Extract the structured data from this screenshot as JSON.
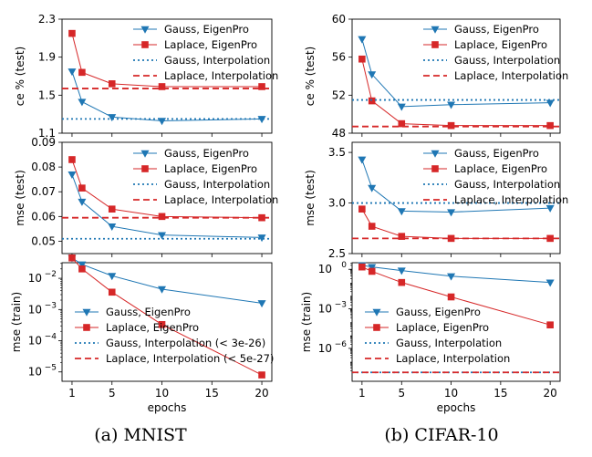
{
  "figure": {
    "captions": [
      "(a) MNIST",
      "(b) CIFAR-10"
    ],
    "xlabel": "epochs"
  },
  "chart_data": [
    {
      "type": "line",
      "dataset": "MNIST",
      "metric": "ce",
      "title": "",
      "xlabel": "",
      "ylabel": "ce % (test)",
      "xlim": [
        0,
        21
      ],
      "ylim": [
        1.1,
        2.3
      ],
      "yscale": "linear",
      "xticks": [
        1,
        5,
        10,
        15,
        20
      ],
      "xtick_labels": [],
      "yticks": [
        1.1,
        1.5,
        1.9,
        2.3
      ],
      "ytick_labels": [
        "1.1",
        "1.5",
        "1.9",
        "2.3"
      ],
      "grid": false,
      "legend": "top-right",
      "series": [
        {
          "name": "Gauss, EigenPro",
          "color": "#1f77b4",
          "style": "solid",
          "marker": "triangle-down",
          "x": [
            1,
            2,
            5,
            10,
            20
          ],
          "y": [
            1.75,
            1.43,
            1.27,
            1.23,
            1.25
          ]
        },
        {
          "name": "Laplace, EigenPro",
          "color": "#d62728",
          "style": "solid",
          "marker": "square",
          "x": [
            1,
            2,
            5,
            10,
            20
          ],
          "y": [
            2.15,
            1.74,
            1.62,
            1.59,
            1.59
          ]
        },
        {
          "name": "Gauss, Interpolation",
          "color": "#1f77b4",
          "style": "dotted",
          "hline": 1.25
        },
        {
          "name": "Laplace, Interpolation",
          "color": "#d62728",
          "style": "dashed",
          "hline": 1.57
        }
      ]
    },
    {
      "type": "line",
      "dataset": "MNIST",
      "metric": "mse",
      "title": "",
      "xlabel": "",
      "ylabel": "mse (test)",
      "xlim": [
        0,
        21
      ],
      "ylim": [
        0.045,
        0.09
      ],
      "yscale": "linear",
      "xticks": [
        1,
        5,
        10,
        15,
        20
      ],
      "xtick_labels": [],
      "yticks": [
        0.05,
        0.06,
        0.07,
        0.08,
        0.09
      ],
      "ytick_labels": [
        "0.05",
        "0.06",
        "0.07",
        "0.08",
        "0.09"
      ],
      "grid": false,
      "legend": "top-right",
      "series": [
        {
          "name": "Gauss, EigenPro",
          "color": "#1f77b4",
          "style": "solid",
          "marker": "triangle-down",
          "x": [
            1,
            2,
            5,
            10,
            20
          ],
          "y": [
            0.077,
            0.066,
            0.056,
            0.0525,
            0.0515
          ]
        },
        {
          "name": "Laplace, EigenPro",
          "color": "#d62728",
          "style": "solid",
          "marker": "square",
          "x": [
            1,
            2,
            5,
            10,
            20
          ],
          "y": [
            0.083,
            0.0715,
            0.063,
            0.06,
            0.0595
          ]
        },
        {
          "name": "Gauss, Interpolation",
          "color": "#1f77b4",
          "style": "dotted",
          "hline": 0.051
        },
        {
          "name": "Laplace, Interpolation",
          "color": "#d62728",
          "style": "dashed",
          "hline": 0.0595
        }
      ]
    },
    {
      "type": "line",
      "dataset": "MNIST",
      "metric": "mse-train",
      "title": "",
      "xlabel": "epochs",
      "ylabel": "mse (train)",
      "xlim": [
        0,
        21
      ],
      "ylim_log10": [
        -5.3,
        -1.5
      ],
      "yscale": "log",
      "xticks": [
        1,
        5,
        10,
        15,
        20
      ],
      "xtick_labels": [
        "1",
        "5",
        "10",
        "15",
        "20"
      ],
      "ytick_exponents": [
        -5,
        -4,
        -3,
        -2
      ],
      "ytick_base": "10",
      "grid": false,
      "legend": "bottom-left",
      "series": [
        {
          "name": "Gauss, EigenPro",
          "color": "#1f77b4",
          "style": "solid",
          "marker": "triangle-down",
          "x": [
            1,
            2,
            5,
            10,
            20
          ],
          "y": [
            0.045,
            0.028,
            0.012,
            0.0045,
            0.0016
          ]
        },
        {
          "name": "Laplace, EigenPro",
          "color": "#d62728",
          "style": "solid",
          "marker": "square",
          "x": [
            1,
            2,
            5,
            10,
            20
          ],
          "y": [
            0.045,
            0.02,
            0.0036,
            0.00033,
            8e-06
          ]
        },
        {
          "name": "Gauss, Interpolation (< 3e-26)",
          "color": "#1f77b4",
          "style": "dotted",
          "hline": null
        },
        {
          "name": "Laplace, Interpolation (< 5e-27)",
          "color": "#d62728",
          "style": "dashed",
          "hline": null
        }
      ]
    },
    {
      "type": "line",
      "dataset": "CIFAR-10",
      "metric": "ce",
      "title": "",
      "xlabel": "",
      "ylabel": "ce % (test)",
      "xlim": [
        0,
        21
      ],
      "ylim": [
        48,
        60
      ],
      "yscale": "linear",
      "xticks": [
        1,
        5,
        10,
        15,
        20
      ],
      "xtick_labels": [],
      "yticks": [
        48,
        52,
        56,
        60
      ],
      "ytick_labels": [
        "48",
        "52",
        "56",
        "60"
      ],
      "grid": false,
      "legend": "top-right",
      "series": [
        {
          "name": "Gauss, EigenPro",
          "color": "#1f77b4",
          "style": "solid",
          "marker": "triangle-down",
          "x": [
            1,
            2,
            5,
            10,
            20
          ],
          "y": [
            57.9,
            54.2,
            50.8,
            51.0,
            51.2
          ]
        },
        {
          "name": "Laplace, EigenPro",
          "color": "#d62728",
          "style": "solid",
          "marker": "square",
          "x": [
            1,
            2,
            5,
            10,
            20
          ],
          "y": [
            55.8,
            51.4,
            49.0,
            48.8,
            48.8
          ]
        },
        {
          "name": "Gauss, Interpolation",
          "color": "#1f77b4",
          "style": "dotted",
          "hline": 51.5
        },
        {
          "name": "Laplace, Interpolation",
          "color": "#d62728",
          "style": "dashed",
          "hline": 48.7
        }
      ]
    },
    {
      "type": "line",
      "dataset": "CIFAR-10",
      "metric": "mse",
      "title": "",
      "xlabel": "",
      "ylabel": "mse (test)",
      "xlim": [
        0,
        21
      ],
      "ylim": [
        2.5,
        3.6
      ],
      "yscale": "linear",
      "xticks": [
        1,
        5,
        10,
        15,
        20
      ],
      "xtick_labels": [],
      "yticks": [
        2.5,
        3.0,
        3.5
      ],
      "ytick_labels": [
        "2.5",
        "3.0",
        "3.5"
      ],
      "grid": false,
      "legend": "top-right",
      "series": [
        {
          "name": "Gauss, EigenPro",
          "color": "#1f77b4",
          "style": "solid",
          "marker": "triangle-down",
          "x": [
            1,
            2,
            5,
            10,
            20
          ],
          "y": [
            3.43,
            3.15,
            2.92,
            2.91,
            2.95
          ]
        },
        {
          "name": "Laplace, EigenPro",
          "color": "#d62728",
          "style": "solid",
          "marker": "square",
          "x": [
            1,
            2,
            5,
            10,
            20
          ],
          "y": [
            2.94,
            2.77,
            2.67,
            2.65,
            2.65
          ]
        },
        {
          "name": "Gauss, Interpolation",
          "color": "#1f77b4",
          "style": "dotted",
          "hline": 3.0
        },
        {
          "name": "Laplace, Interpolation",
          "color": "#d62728",
          "style": "dashed",
          "hline": 2.65
        }
      ]
    },
    {
      "type": "line",
      "dataset": "CIFAR-10",
      "metric": "mse-train",
      "title": "",
      "xlabel": "epochs",
      "ylabel": "mse (train)",
      "xlim": [
        0,
        21
      ],
      "ylim_log10": [
        -8.5,
        0.5
      ],
      "yscale": "log",
      "xticks": [
        1,
        5,
        10,
        15,
        20
      ],
      "xtick_labels": [
        "1",
        "5",
        "10",
        "15",
        "20"
      ],
      "ytick_exponents": [
        -6,
        -3,
        0
      ],
      "ytick_base": "10",
      "grid": false,
      "legend": "bottom-left",
      "series": [
        {
          "name": "Gauss, EigenPro",
          "color": "#1f77b4",
          "style": "solid",
          "marker": "triangle-down",
          "x": [
            1,
            2,
            5,
            10,
            20
          ],
          "y": [
            2.0,
            1.5,
            0.8,
            0.3,
            0.1
          ]
        },
        {
          "name": "Laplace, EigenPro",
          "color": "#d62728",
          "style": "solid",
          "marker": "square",
          "x": [
            1,
            2,
            5,
            10,
            20
          ],
          "y": [
            1.5,
            0.7,
            0.1,
            0.008,
            6e-05
          ]
        },
        {
          "name": "Gauss, Interpolation",
          "color": "#1f77b4",
          "style": "dotted",
          "hline": 1.5e-08
        },
        {
          "name": "Laplace, Interpolation",
          "color": "#d62728",
          "style": "dashed",
          "hline": 1.5e-08
        }
      ]
    }
  ]
}
